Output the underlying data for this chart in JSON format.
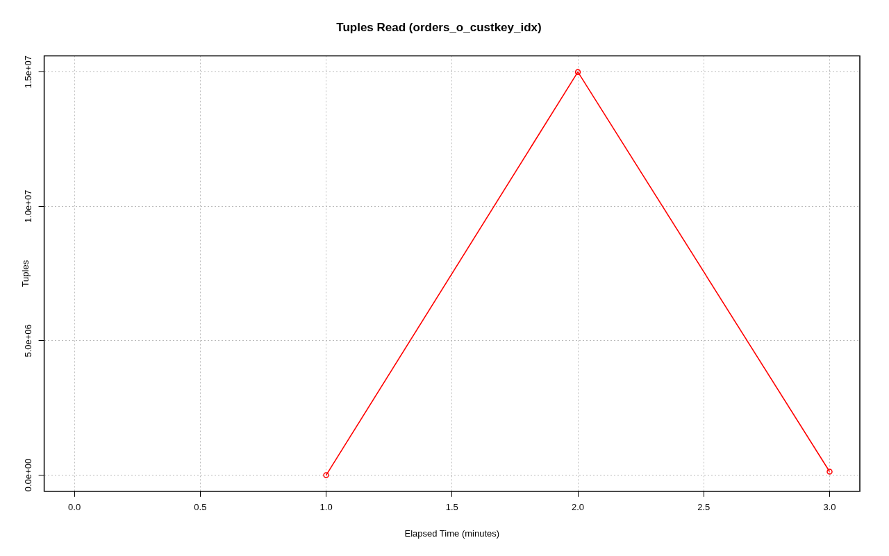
{
  "chart_data": {
    "type": "line",
    "title": "Tuples Read (orders_o_custkey_idx)",
    "xlabel": "Elapsed Time (minutes)",
    "ylabel": "Tuples",
    "x": [
      1,
      2,
      3
    ],
    "series": [
      {
        "color": "#ff0000",
        "values": [
          0,
          15000000,
          130000
        ]
      }
    ],
    "xlim": [
      -0.12,
      3.12
    ],
    "xticks": [
      {
        "value": 0,
        "label": "0.0"
      },
      {
        "value": 0.5,
        "label": "0.5"
      },
      {
        "value": 1,
        "label": "1.0"
      },
      {
        "value": 1.5,
        "label": "1.5"
      },
      {
        "value": 2,
        "label": "2.0"
      },
      {
        "value": 2.5,
        "label": "2.5"
      },
      {
        "value": 3,
        "label": "3.0"
      }
    ],
    "ylim": [
      -600000,
      15600000
    ],
    "yticks": [
      {
        "value": 0,
        "label": "0.0e+00"
      },
      {
        "value": 5000000,
        "label": "5.0e+06"
      },
      {
        "value": 10000000,
        "label": "1.0e+07"
      },
      {
        "value": 15000000,
        "label": "1.5e+07"
      }
    ],
    "grid": true,
    "marker": "circle",
    "line_style": "solid",
    "legend": false
  }
}
